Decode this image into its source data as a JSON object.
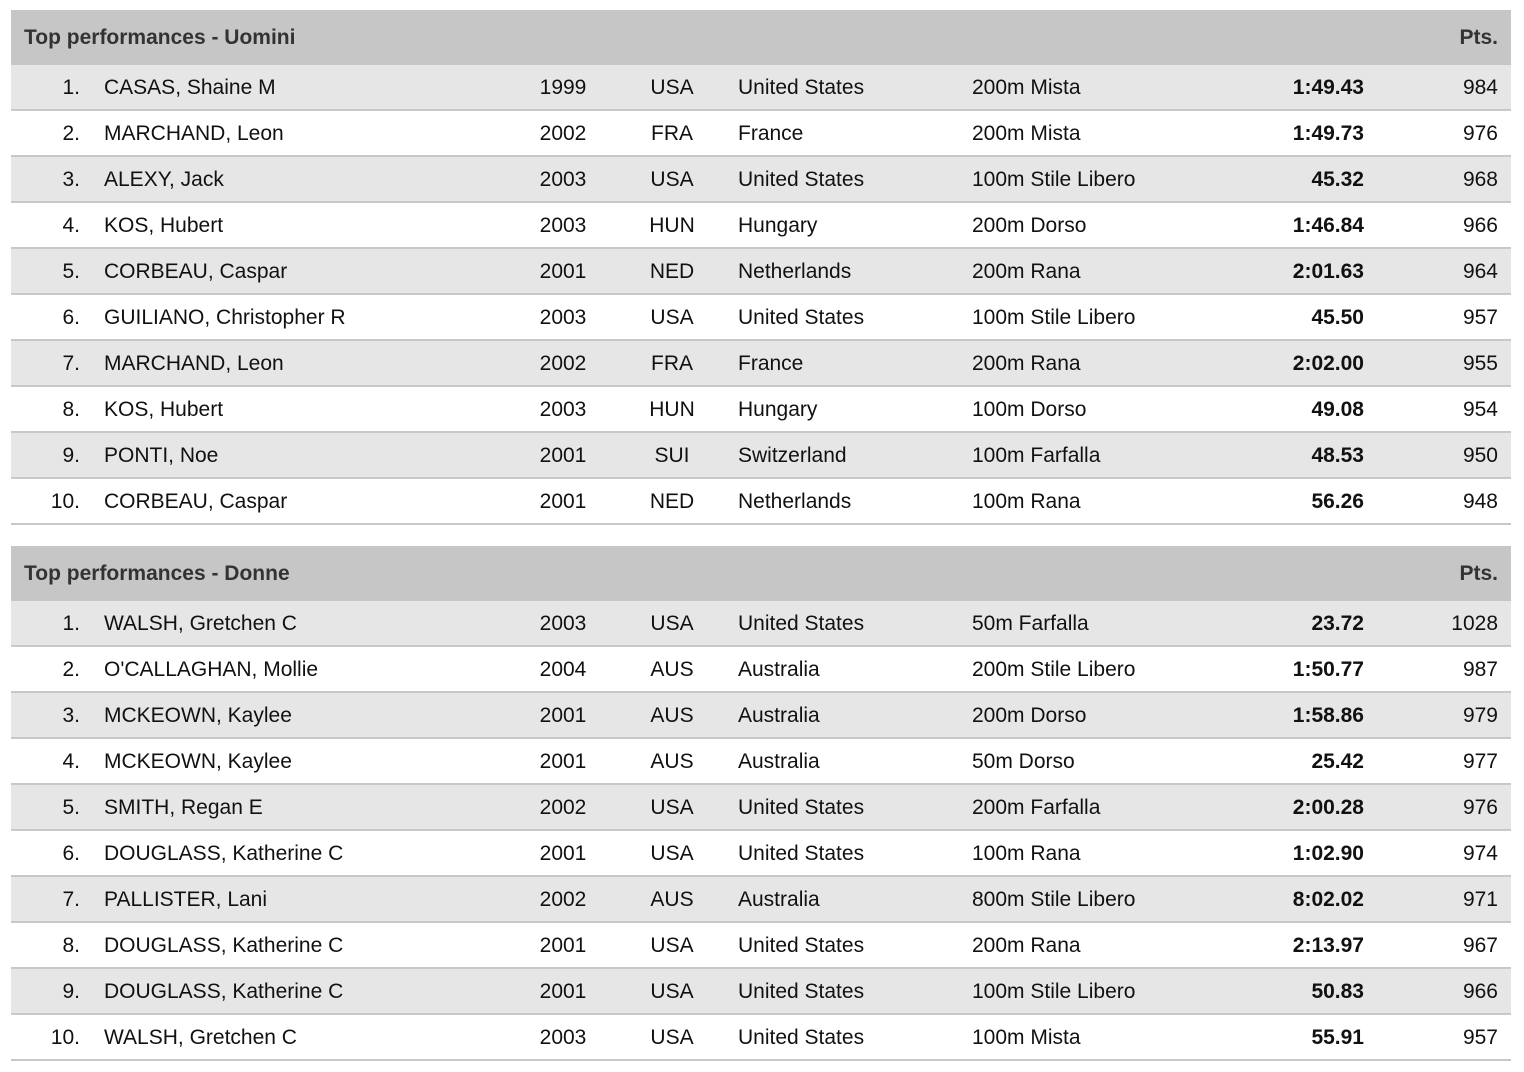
{
  "tables": [
    {
      "title": "Top performances - Uomini",
      "pts_label": "Pts.",
      "rows": [
        {
          "rank": "1.",
          "name": "CASAS, Shaine M",
          "year": "1999",
          "code": "USA",
          "country": "United States",
          "event": "200m Mista",
          "time": "1:49.43",
          "pts": "984"
        },
        {
          "rank": "2.",
          "name": "MARCHAND, Leon",
          "year": "2002",
          "code": "FRA",
          "country": "France",
          "event": "200m Mista",
          "time": "1:49.73",
          "pts": "976"
        },
        {
          "rank": "3.",
          "name": "ALEXY, Jack",
          "year": "2003",
          "code": "USA",
          "country": "United States",
          "event": "100m Stile Libero",
          "time": "45.32",
          "pts": "968"
        },
        {
          "rank": "4.",
          "name": "KOS, Hubert",
          "year": "2003",
          "code": "HUN",
          "country": "Hungary",
          "event": "200m Dorso",
          "time": "1:46.84",
          "pts": "966"
        },
        {
          "rank": "5.",
          "name": "CORBEAU, Caspar",
          "year": "2001",
          "code": "NED",
          "country": "Netherlands",
          "event": "200m Rana",
          "time": "2:01.63",
          "pts": "964"
        },
        {
          "rank": "6.",
          "name": "GUILIANO, Christopher R",
          "year": "2003",
          "code": "USA",
          "country": "United States",
          "event": "100m Stile Libero",
          "time": "45.50",
          "pts": "957"
        },
        {
          "rank": "7.",
          "name": "MARCHAND, Leon",
          "year": "2002",
          "code": "FRA",
          "country": "France",
          "event": "200m Rana",
          "time": "2:02.00",
          "pts": "955"
        },
        {
          "rank": "8.",
          "name": "KOS, Hubert",
          "year": "2003",
          "code": "HUN",
          "country": "Hungary",
          "event": "100m Dorso",
          "time": "49.08",
          "pts": "954"
        },
        {
          "rank": "9.",
          "name": "PONTI, Noe",
          "year": "2001",
          "code": "SUI",
          "country": "Switzerland",
          "event": "100m Farfalla",
          "time": "48.53",
          "pts": "950"
        },
        {
          "rank": "10.",
          "name": "CORBEAU, Caspar",
          "year": "2001",
          "code": "NED",
          "country": "Netherlands",
          "event": "100m Rana",
          "time": "56.26",
          "pts": "948"
        }
      ]
    },
    {
      "title": "Top performances - Donne",
      "pts_label": "Pts.",
      "rows": [
        {
          "rank": "1.",
          "name": "WALSH, Gretchen C",
          "year": "2003",
          "code": "USA",
          "country": "United States",
          "event": "50m Farfalla",
          "time": "23.72",
          "pts": "1028"
        },
        {
          "rank": "2.",
          "name": "O'CALLAGHAN, Mollie",
          "year": "2004",
          "code": "AUS",
          "country": "Australia",
          "event": "200m Stile Libero",
          "time": "1:50.77",
          "pts": "987"
        },
        {
          "rank": "3.",
          "name": "MCKEOWN, Kaylee",
          "year": "2001",
          "code": "AUS",
          "country": "Australia",
          "event": "200m Dorso",
          "time": "1:58.86",
          "pts": "979"
        },
        {
          "rank": "4.",
          "name": "MCKEOWN, Kaylee",
          "year": "2001",
          "code": "AUS",
          "country": "Australia",
          "event": "50m Dorso",
          "time": "25.42",
          "pts": "977"
        },
        {
          "rank": "5.",
          "name": "SMITH, Regan E",
          "year": "2002",
          "code": "USA",
          "country": "United States",
          "event": "200m Farfalla",
          "time": "2:00.28",
          "pts": "976"
        },
        {
          "rank": "6.",
          "name": "DOUGLASS, Katherine C",
          "year": "2001",
          "code": "USA",
          "country": "United States",
          "event": "100m Rana",
          "time": "1:02.90",
          "pts": "974"
        },
        {
          "rank": "7.",
          "name": "PALLISTER, Lani",
          "year": "2002",
          "code": "AUS",
          "country": "Australia",
          "event": "800m Stile Libero",
          "time": "8:02.02",
          "pts": "971"
        },
        {
          "rank": "8.",
          "name": "DOUGLASS, Katherine C",
          "year": "2001",
          "code": "USA",
          "country": "United States",
          "event": "200m Rana",
          "time": "2:13.97",
          "pts": "967"
        },
        {
          "rank": "9.",
          "name": "DOUGLASS, Katherine C",
          "year": "2001",
          "code": "USA",
          "country": "United States",
          "event": "100m Stile Libero",
          "time": "50.83",
          "pts": "966"
        },
        {
          "rank": "10.",
          "name": "WALSH, Gretchen C",
          "year": "2003",
          "code": "USA",
          "country": "United States",
          "event": "100m Mista",
          "time": "55.91",
          "pts": "957"
        }
      ]
    }
  ]
}
